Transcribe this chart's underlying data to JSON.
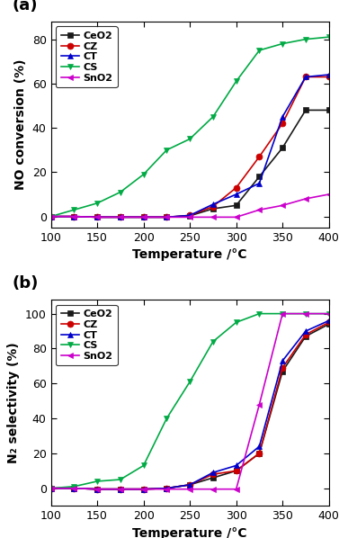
{
  "temp": [
    100,
    125,
    150,
    175,
    200,
    225,
    250,
    275,
    300,
    325,
    350,
    375,
    400
  ],
  "panel_a": {
    "ylabel": "NO conversion (%)",
    "xlabel": "Temperature /°C",
    "ylim": [
      -5,
      88
    ],
    "yticks": [
      0,
      20,
      40,
      60,
      80
    ],
    "series": {
      "CeO2": {
        "color": "#1a1a1a",
        "marker": "s",
        "values": [
          0,
          0,
          -0.3,
          -0.3,
          -0.3,
          -0.3,
          0.3,
          3.5,
          5.0,
          18,
          31,
          48,
          48
        ]
      },
      "CZ": {
        "color": "#cc0000",
        "marker": "o",
        "values": [
          0,
          0,
          -0.3,
          -0.3,
          -0.3,
          -0.3,
          0.5,
          4.5,
          13,
          27,
          42,
          63,
          63
        ]
      },
      "CT": {
        "color": "#0000cc",
        "marker": "^",
        "values": [
          0,
          0,
          -0.3,
          -0.3,
          -0.3,
          -0.3,
          0.5,
          5.5,
          10,
          15,
          45,
          63,
          64
        ]
      },
      "CS": {
        "color": "#00aa44",
        "marker": "v",
        "values": [
          0,
          3,
          6,
          11,
          19,
          30,
          35,
          45,
          61,
          75,
          78,
          80,
          81
        ]
      },
      "SnO2": {
        "color": "#cc00cc",
        "marker": "<",
        "values": [
          0,
          0,
          -0.3,
          -0.3,
          -0.3,
          -0.3,
          -0.3,
          -0.3,
          -0.3,
          3,
          5,
          8,
          10
        ]
      }
    }
  },
  "panel_b": {
    "ylabel": "N₂ selectivity (%)",
    "xlabel": "Temperature /°C",
    "ylim": [
      -10,
      108
    ],
    "yticks": [
      0,
      20,
      40,
      60,
      80,
      100
    ],
    "series": {
      "CeO2": {
        "color": "#1a1a1a",
        "marker": "s",
        "values": [
          0,
          0,
          -0.5,
          -0.5,
          -0.5,
          0,
          2,
          6,
          10,
          20,
          67,
          87,
          94
        ]
      },
      "CZ": {
        "color": "#cc0000",
        "marker": "o",
        "values": [
          0,
          0,
          -0.5,
          -0.5,
          -0.5,
          0,
          2,
          8,
          10,
          20,
          69,
          88,
          95
        ]
      },
      "CT": {
        "color": "#0000cc",
        "marker": "^",
        "values": [
          0,
          0,
          -0.5,
          -0.5,
          -0.5,
          0,
          2,
          9,
          13,
          24,
          73,
          90,
          96
        ]
      },
      "CS": {
        "color": "#00aa44",
        "marker": "v",
        "values": [
          0,
          1,
          4,
          5,
          13,
          40,
          61,
          84,
          95,
          100,
          100,
          100,
          100
        ]
      },
      "SnO2": {
        "color": "#cc00cc",
        "marker": "<",
        "values": [
          0,
          0,
          -0.5,
          -0.5,
          -0.5,
          -0.5,
          -0.5,
          -0.5,
          -0.5,
          48,
          100,
          100,
          100
        ]
      }
    }
  },
  "legend_order": [
    "CeO2",
    "CZ",
    "CT",
    "CS",
    "SnO2"
  ],
  "linewidth": 1.2,
  "markersize": 5,
  "fontsize_label": 10,
  "fontsize_tick": 9,
  "fontsize_legend": 8,
  "fontsize_panel": 13
}
